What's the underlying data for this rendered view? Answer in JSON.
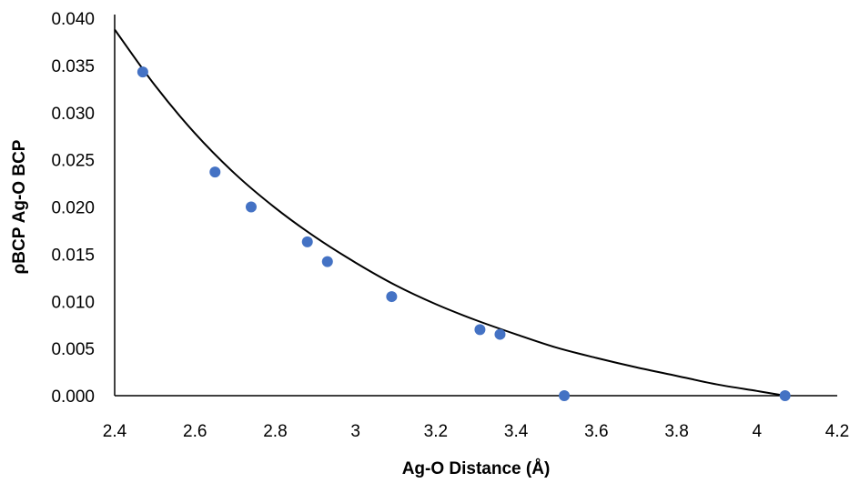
{
  "chart_data": {
    "type": "scatter",
    "title": "",
    "xlabel": "Ag-O Distance (Å)",
    "ylabel": "ρBCP Ag-O BCP",
    "xlim": [
      2.4,
      4.2
    ],
    "ylim": [
      0.0,
      0.04
    ],
    "x_ticks": [
      "2.4",
      "2.6",
      "2.8",
      "3",
      "3.2",
      "3.4",
      "3.6",
      "3.8",
      "4",
      "4.2"
    ],
    "y_ticks": [
      "0.000",
      "0.005",
      "0.010",
      "0.015",
      "0.020",
      "0.025",
      "0.030",
      "0.035",
      "0.040"
    ],
    "grid": false,
    "legend": "none",
    "marker_color": "#4472C4",
    "trendline_color": "#000000",
    "points": [
      {
        "x": 2.47,
        "y": 0.0343
      },
      {
        "x": 2.65,
        "y": 0.0237
      },
      {
        "x": 2.74,
        "y": 0.02
      },
      {
        "x": 2.88,
        "y": 0.0163
      },
      {
        "x": 2.93,
        "y": 0.0142
      },
      {
        "x": 3.09,
        "y": 0.0105
      },
      {
        "x": 3.31,
        "y": 0.007
      },
      {
        "x": 3.36,
        "y": 0.0065
      },
      {
        "x": 3.52,
        "y": 0.0
      },
      {
        "x": 4.07,
        "y": 0.0
      }
    ],
    "trendline": {
      "x": [
        2.4,
        2.5,
        2.6,
        2.7,
        2.8,
        2.9,
        3.0,
        3.1,
        3.2,
        3.3,
        3.4,
        3.5,
        3.6,
        3.7,
        3.8,
        3.9,
        4.0,
        4.07
      ],
      "y": [
        0.0388,
        0.0329,
        0.0278,
        0.0235,
        0.0199,
        0.0168,
        0.0141,
        0.0117,
        0.0097,
        0.008,
        0.0065,
        0.0051,
        0.004,
        0.003,
        0.0021,
        0.0012,
        0.0005,
        0.0
      ]
    }
  }
}
